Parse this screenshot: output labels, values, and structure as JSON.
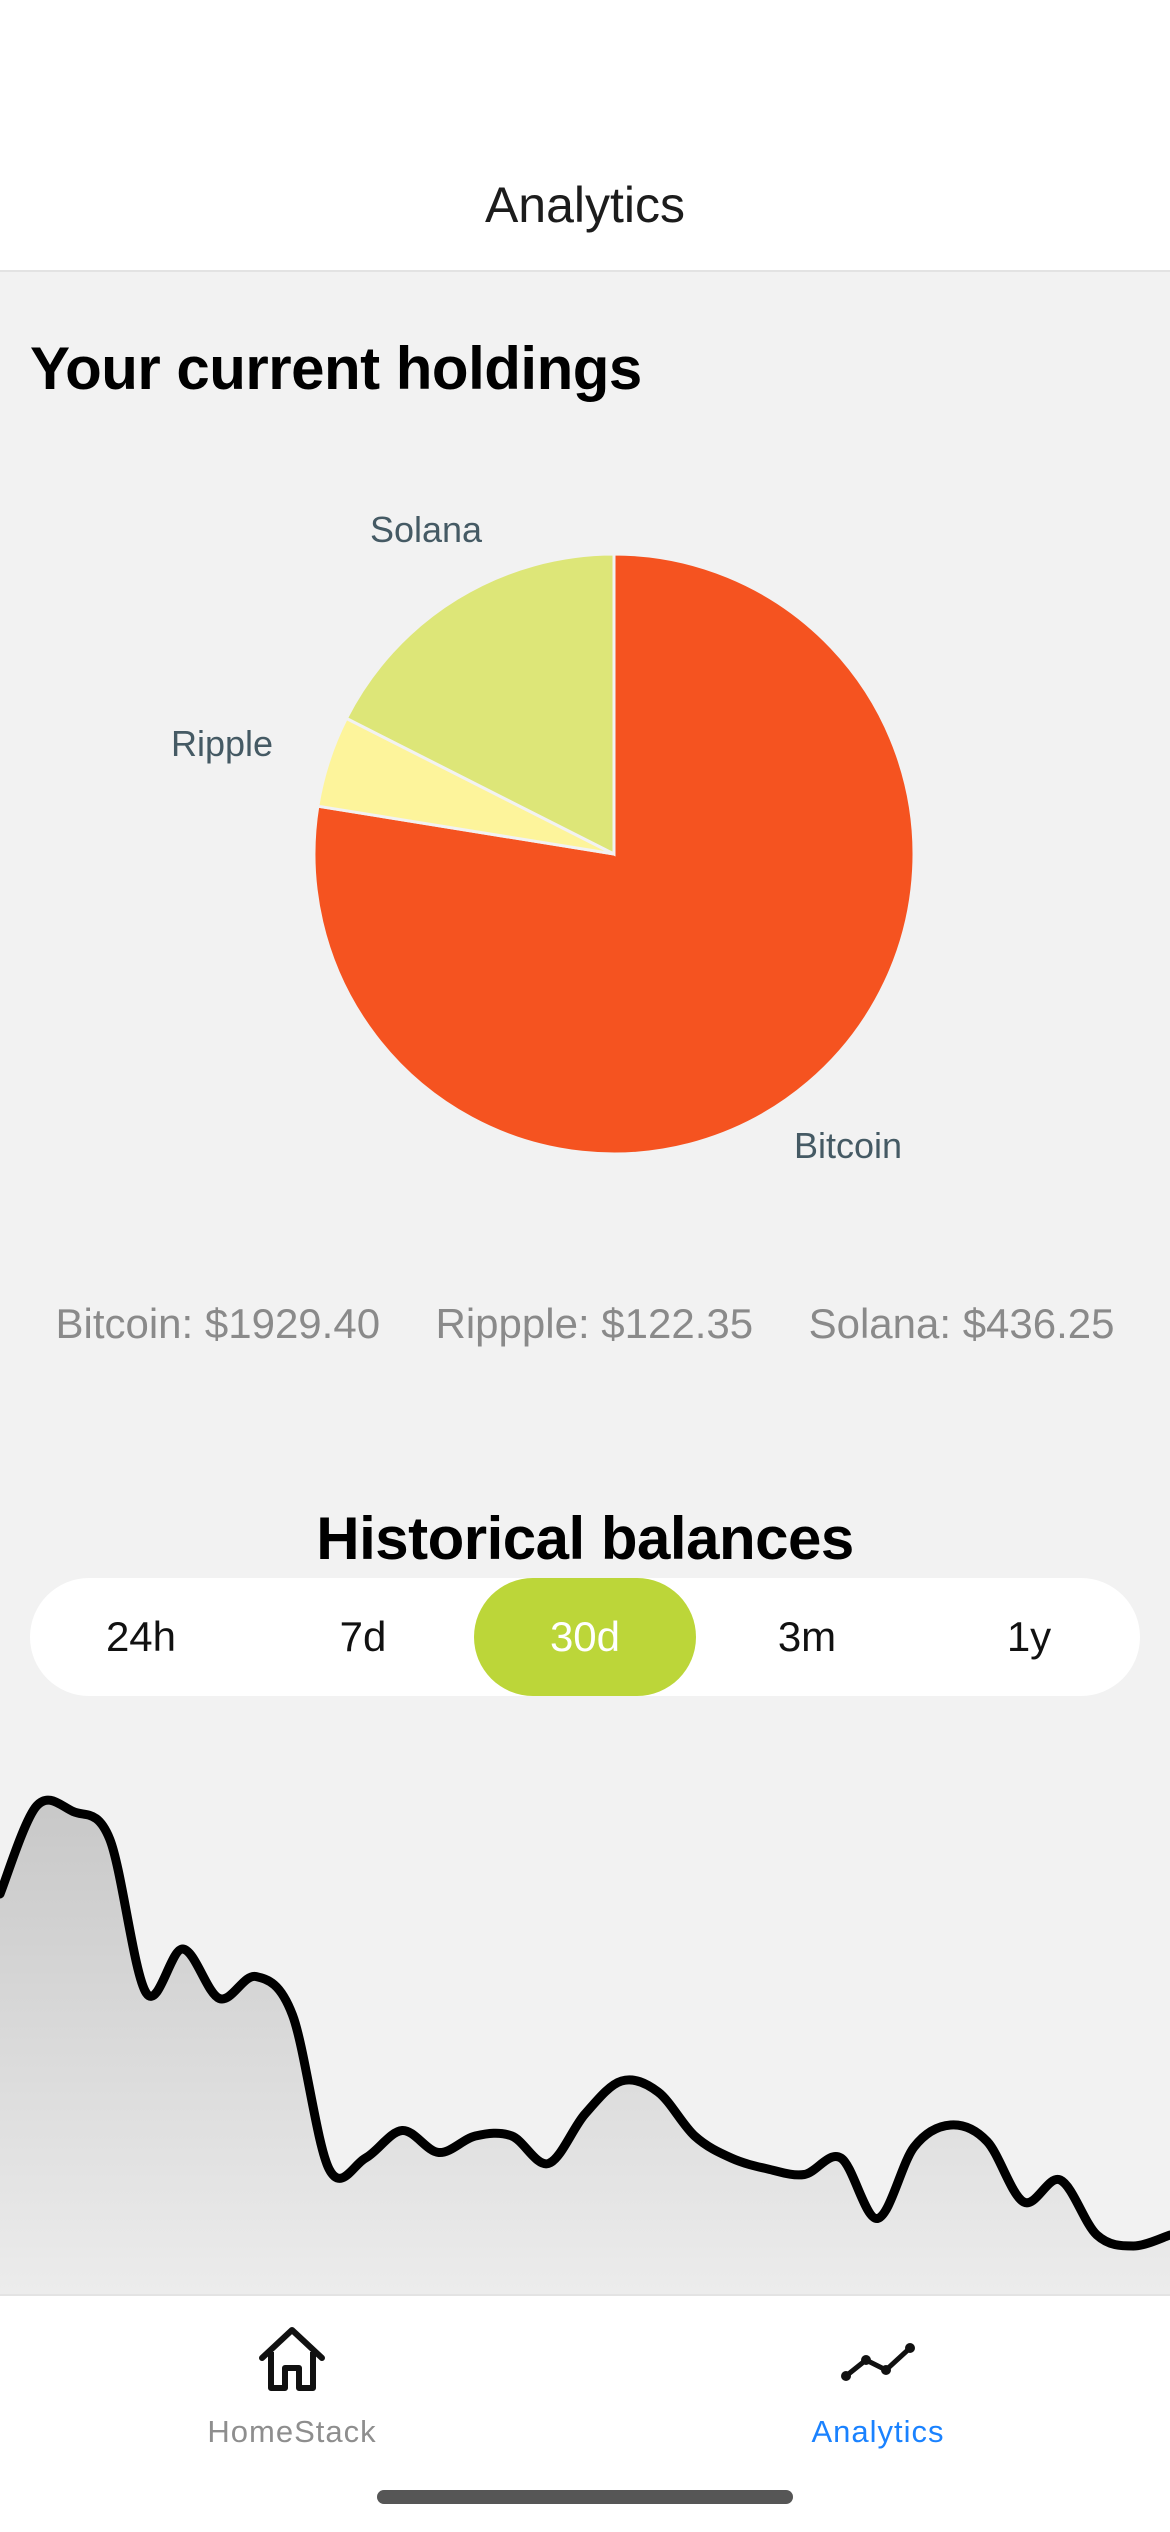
{
  "header": {
    "title": "Analytics"
  },
  "holdings": {
    "title": "Your current holdings",
    "values": [
      {
        "label": "Bitcoin: $1929.40"
      },
      {
        "label": "Rippple: $122.35"
      },
      {
        "label": "Solana: $436.25"
      }
    ]
  },
  "colors": {
    "bitcoin": "#f55320",
    "ripple": "#fdf49b",
    "solana": "#dde678",
    "accent": "#bcd639",
    "tab_active": "#1a82ff",
    "tab_inactive": "#8e8e8e"
  },
  "chart_data": [
    {
      "type": "pie",
      "slices": [
        {
          "label": "Bitcoin",
          "value": 1929.4,
          "color": "#f55320"
        },
        {
          "label": "Ripple",
          "value": 122.35,
          "color": "#fdf49b"
        },
        {
          "label": "Solana",
          "value": 436.25,
          "color": "#dde678"
        }
      ],
      "title": ""
    },
    {
      "type": "area",
      "title": "Historical balances",
      "y": [
        72,
        88,
        87,
        82,
        54,
        62,
        53,
        57,
        50,
        22,
        24,
        29,
        25,
        28,
        28,
        23,
        32,
        38,
        36,
        28,
        24,
        22,
        21,
        24,
        13,
        26,
        30,
        27,
        16,
        20,
        10,
        8,
        10
      ]
    }
  ],
  "history": {
    "title": "Historical balances",
    "ranges": [
      {
        "label": "24h",
        "selected": false
      },
      {
        "label": "7d",
        "selected": false
      },
      {
        "label": "30d",
        "selected": true
      },
      {
        "label": "3m",
        "selected": false
      },
      {
        "label": "1y",
        "selected": false
      }
    ]
  },
  "tabbar": {
    "items": [
      {
        "label": "HomeStack",
        "icon": "home-icon",
        "active": false
      },
      {
        "label": "Analytics",
        "icon": "trend-line-icon",
        "active": true
      }
    ]
  }
}
